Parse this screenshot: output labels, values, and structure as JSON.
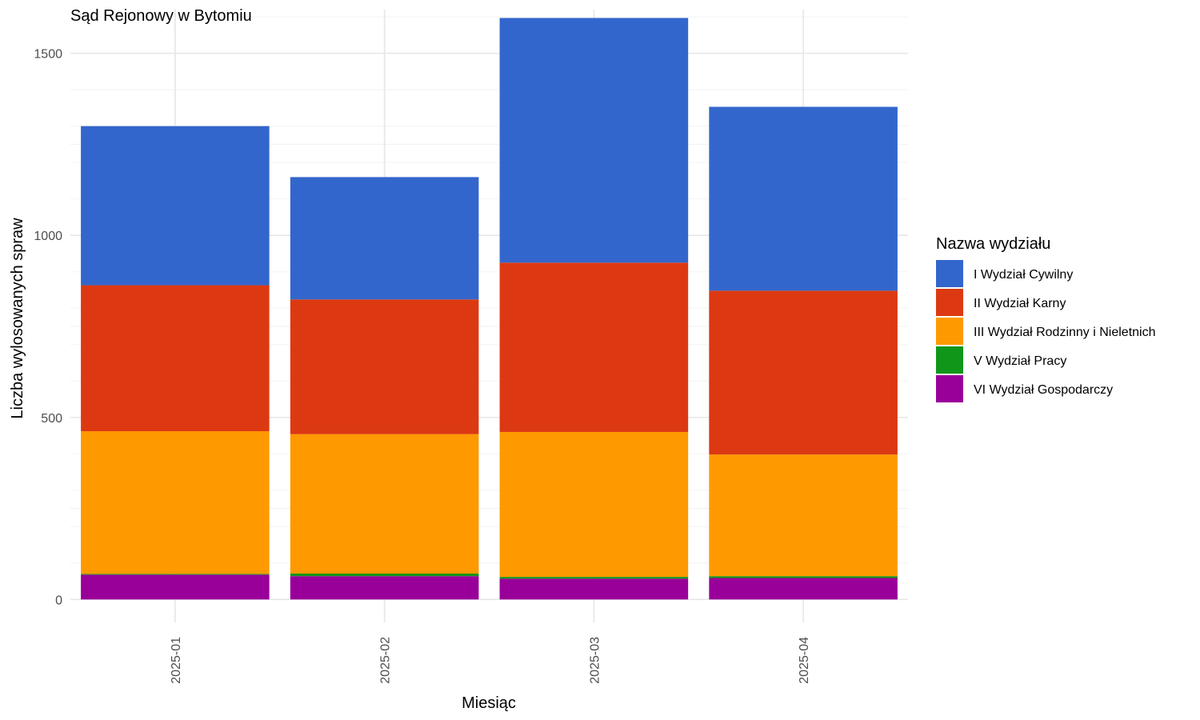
{
  "chart_data": {
    "type": "bar",
    "stacked": true,
    "title": "Sąd Rejonowy w Bytomiu",
    "xlabel": "Miesiąc",
    "ylabel": "Liczba wylosowanych spraw",
    "categories": [
      "2025-01",
      "2025-02",
      "2025-03",
      "2025-04"
    ],
    "ylim": [
      -63,
      1620
    ],
    "yticks": [
      0,
      500,
      1000,
      1500
    ],
    "grid": true,
    "legend": {
      "title": "Nazwa wydziału",
      "position": "right"
    },
    "series": [
      {
        "name": "VI Wydział Gospodarczy",
        "color": "#990099",
        "values": [
          68,
          64,
          57,
          59
        ]
      },
      {
        "name": "V Wydział Pracy",
        "color": "#109618",
        "values": [
          2,
          7,
          5,
          5
        ]
      },
      {
        "name": "III Wydział Rodzinny i Nieletnich",
        "color": "#FF9900",
        "values": [
          392,
          383,
          398,
          334
        ]
      },
      {
        "name": "II Wydział Karny",
        "color": "#DC3912",
        "values": [
          401,
          370,
          465,
          450
        ]
      },
      {
        "name": "I Wydział Cywilny",
        "color": "#3366CC",
        "values": [
          437,
          336,
          672,
          505
        ]
      }
    ],
    "legend_order": [
      "I Wydział Cywilny",
      "II Wydział Karny",
      "III Wydział Rodzinny i Nieletnich",
      "V Wydział Pracy",
      "VI Wydział Gospodarczy"
    ]
  }
}
